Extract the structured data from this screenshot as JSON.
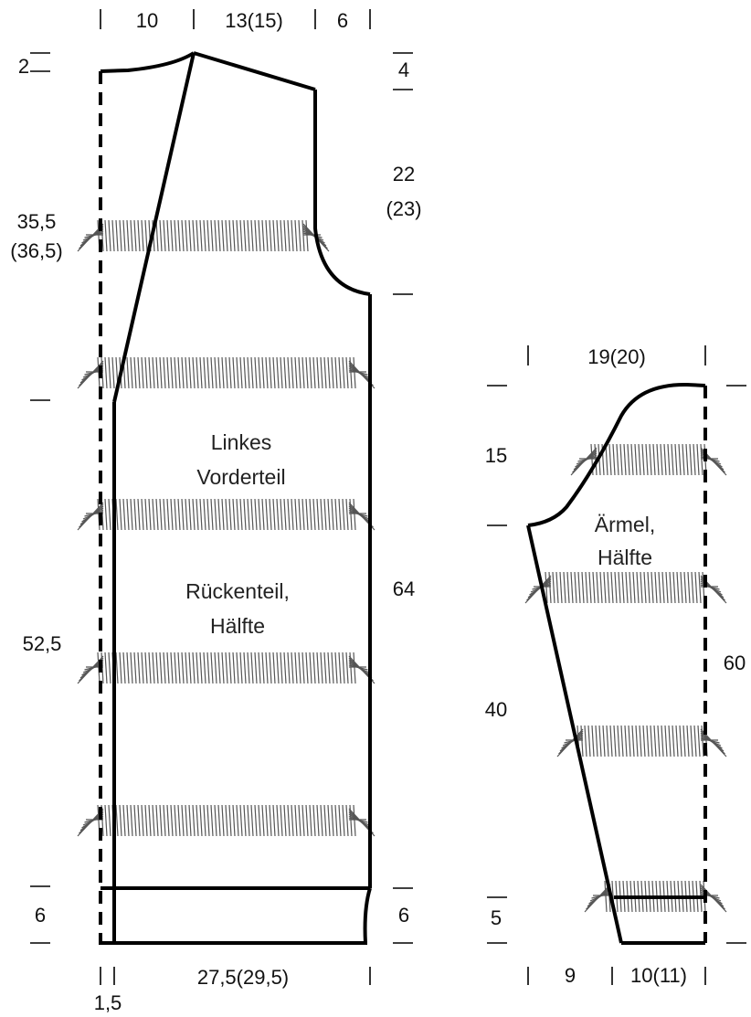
{
  "top_dims": {
    "d1": "10",
    "d2": "13(15)",
    "d3": "6"
  },
  "left_dims": {
    "shoulder_drop": "2",
    "armhole_height": "35,5",
    "armhole_height_alt": "(36,5)",
    "body_length": "52,5",
    "hem": "6"
  },
  "right_dims": {
    "shoulder_slope": "4",
    "armhole": "22",
    "armhole_alt": "(23)",
    "total_length": "64",
    "hem": "6"
  },
  "bottom_dims": {
    "width": "27,5(29,5)",
    "offset": "1,5"
  },
  "pieces": {
    "front_line1": "Linkes",
    "front_line2": "Vorderteil",
    "back_line1": "Rückenteil,",
    "back_line2": "Hälfte"
  },
  "sleeve": {
    "top_width": "19(20)",
    "cap_height": "15",
    "sleeve_length": "40",
    "total_length": "60",
    "cuff": "5",
    "bottom_left": "9",
    "bottom_width": "10(11)",
    "label_line1": "Ärmel,",
    "label_line2": "Hälfte"
  },
  "colors": {
    "outline": "#000000",
    "fringe": "#555555"
  }
}
